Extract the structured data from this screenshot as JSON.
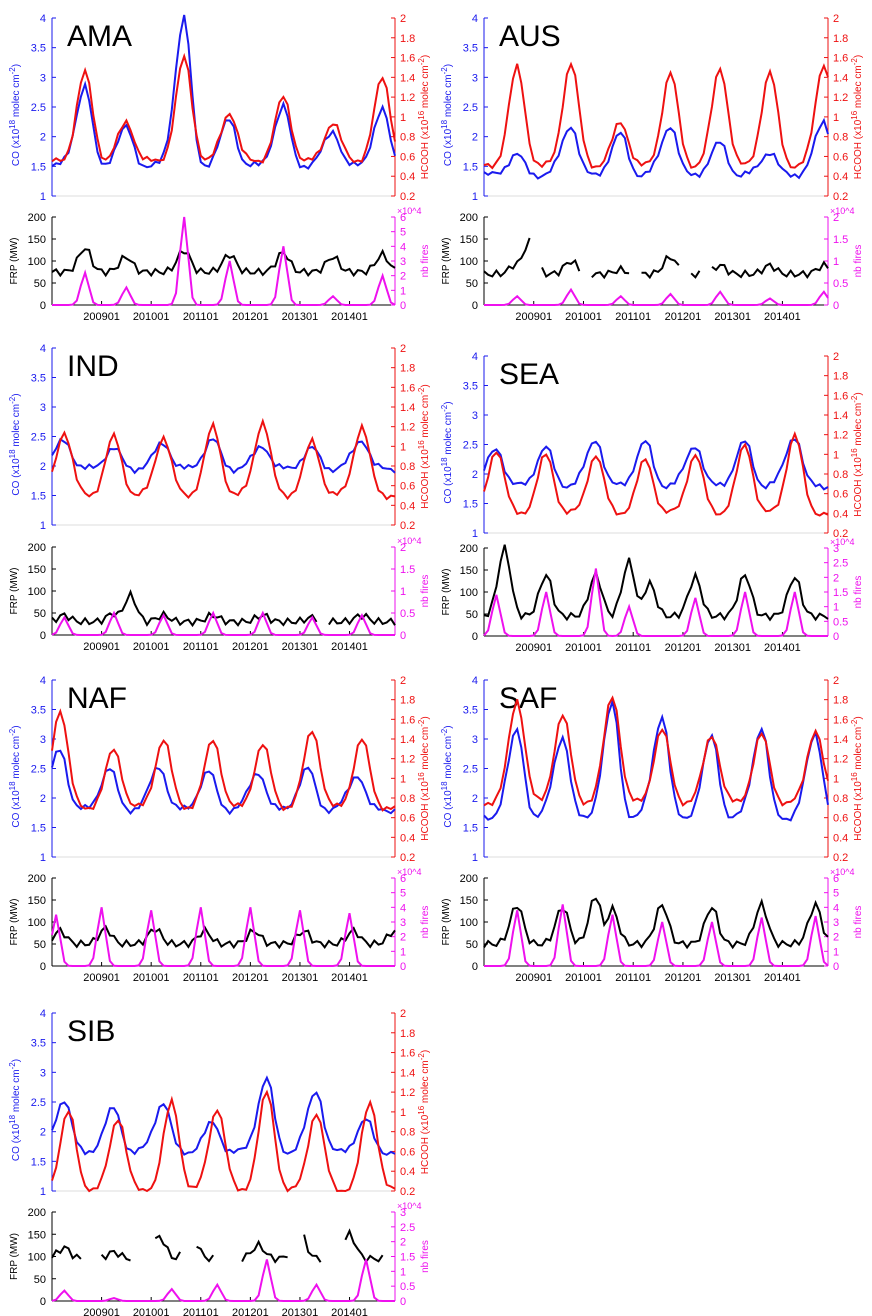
{
  "colors": {
    "co": "#1a1aee",
    "hcooh": "#ee1111",
    "frp": "#000000",
    "fires": "#ee11ee"
  },
  "labels": {
    "co_axis": "CO (x10^18 molec cm^-2)",
    "hcooh_axis": "HCOOH (x10^16 molec cm^-2)",
    "frp_axis": "FRP (MW)",
    "fires_axis": "nb fires",
    "exponent": "×10^4"
  },
  "x_ticks": [
    "200901",
    "201001",
    "201101",
    "201201",
    "201301",
    "201401"
  ],
  "chart_data": [
    {
      "region": "AMA",
      "type": "line",
      "x_range": [
        "2008-01",
        "2014-12"
      ],
      "co_ylim": [
        1,
        4
      ],
      "co_ticks": [
        "1",
        "1.5",
        "2",
        "2.5",
        "3",
        "3.5",
        "4"
      ],
      "hcooh_ylim": [
        0.2,
        2
      ],
      "hcooh_ticks": [
        "0.2",
        "0.4",
        "0.6",
        "0.8",
        "1",
        "1.2",
        "1.4",
        "1.6",
        "1.8",
        "2"
      ],
      "frp_ylim": [
        0,
        200
      ],
      "frp_ticks": [
        "0",
        "50",
        "100",
        "150",
        "200"
      ],
      "fires_ylim": [
        0,
        6
      ],
      "fires_ticks": [
        "0",
        "1",
        "2",
        "3",
        "4",
        "5",
        "6"
      ],
      "co_peaks": [
        [
          8,
          2.85
        ],
        [
          18,
          2.15
        ],
        [
          32,
          4.0
        ],
        [
          43,
          2.3
        ],
        [
          56,
          2.5
        ],
        [
          68,
          2.1
        ],
        [
          80,
          2.45
        ]
      ],
      "co_base": 1.5,
      "hcooh_peaks": [
        [
          8,
          1.45
        ],
        [
          18,
          0.95
        ],
        [
          32,
          1.6
        ],
        [
          43,
          1.05
        ],
        [
          56,
          1.2
        ],
        [
          68,
          0.95
        ],
        [
          80,
          1.4
        ]
      ],
      "hcooh_base": 0.55,
      "frp_base": 75,
      "frp_peaks": [
        [
          8,
          130
        ],
        [
          18,
          110
        ],
        [
          32,
          125
        ],
        [
          43,
          115
        ],
        [
          56,
          120
        ],
        [
          68,
          110
        ],
        [
          80,
          115
        ]
      ],
      "fires_peaks": [
        [
          8,
          2.2
        ],
        [
          18,
          1.2
        ],
        [
          32,
          6.0
        ],
        [
          43,
          3.0
        ],
        [
          56,
          4.0
        ],
        [
          68,
          0.6
        ],
        [
          80,
          2.0
        ]
      ],
      "frp_gaps": []
    },
    {
      "region": "AUS",
      "type": "line",
      "x_range": [
        "2008-01",
        "2014-12"
      ],
      "co_ylim": [
        1,
        4
      ],
      "co_ticks": [
        "1",
        "1.5",
        "2",
        "2.5",
        "3",
        "3.5",
        "4"
      ],
      "hcooh_ylim": [
        0.2,
        2
      ],
      "hcooh_ticks": [
        "0.2",
        "0.4",
        "0.6",
        "0.8",
        "1",
        "1.2",
        "1.4",
        "1.6",
        "1.8",
        "2"
      ],
      "frp_ylim": [
        0,
        200
      ],
      "frp_ticks": [
        "0",
        "50",
        "100",
        "150",
        "200"
      ],
      "fires_ylim": [
        0,
        2
      ],
      "fires_ticks": [
        "0",
        "0.5",
        "1",
        "1.5",
        "2"
      ],
      "co_peaks": [
        [
          8,
          1.7
        ],
        [
          21,
          2.2
        ],
        [
          33,
          2.05
        ],
        [
          45,
          2.2
        ],
        [
          57,
          1.9
        ],
        [
          69,
          1.75
        ],
        [
          82,
          2.25
        ]
      ],
      "co_base": 1.35,
      "hcooh_peaks": [
        [
          8,
          1.5
        ],
        [
          21,
          1.55
        ],
        [
          33,
          0.95
        ],
        [
          45,
          1.45
        ],
        [
          57,
          1.5
        ],
        [
          69,
          1.45
        ],
        [
          82,
          1.55
        ]
      ],
      "hcooh_base": 0.5,
      "frp_base": 70,
      "frp_peaks": [
        [
          8,
          95
        ],
        [
          11,
          145
        ],
        [
          21,
          100
        ],
        [
          33,
          80
        ],
        [
          45,
          110
        ],
        [
          57,
          90
        ],
        [
          69,
          90
        ],
        [
          82,
          90
        ]
      ],
      "fires_peaks": [
        [
          8,
          0.2
        ],
        [
          21,
          0.35
        ],
        [
          33,
          0.2
        ],
        [
          45,
          0.25
        ],
        [
          57,
          0.3
        ],
        [
          69,
          0.15
        ],
        [
          82,
          0.3
        ]
      ],
      "frp_gaps": [
        [
          12,
          13
        ],
        [
          24,
          25
        ],
        [
          36,
          37
        ],
        [
          48,
          49
        ],
        [
          53,
          54
        ]
      ]
    },
    {
      "region": "IND",
      "type": "line",
      "x_range": [
        "2008-01",
        "2014-12"
      ],
      "co_ylim": [
        1,
        4
      ],
      "co_ticks": [
        "1",
        "1.5",
        "2",
        "2.5",
        "3",
        "3.5",
        "4"
      ],
      "hcooh_ylim": [
        0.2,
        2
      ],
      "hcooh_ticks": [
        "0.2",
        "0.4",
        "0.6",
        "0.8",
        "1",
        "1.2",
        "1.4",
        "1.6",
        "1.8",
        "2"
      ],
      "frp_ylim": [
        0,
        200
      ],
      "frp_ticks": [
        "0",
        "50",
        "100",
        "150",
        "200"
      ],
      "fires_ylim": [
        0,
        2
      ],
      "fires_ticks": [
        "0",
        "0.5",
        "1",
        "1.5",
        "2"
      ],
      "co_peaks": [
        [
          3,
          2.45
        ],
        [
          15,
          2.3
        ],
        [
          27,
          2.4
        ],
        [
          39,
          2.45
        ],
        [
          51,
          2.35
        ],
        [
          63,
          2.3
        ],
        [
          75,
          2.45
        ]
      ],
      "co_base": 1.95,
      "hcooh_peaks": [
        [
          3,
          1.15
        ],
        [
          15,
          1.1
        ],
        [
          27,
          1.1
        ],
        [
          39,
          1.2
        ],
        [
          51,
          1.25
        ],
        [
          63,
          1.05
        ],
        [
          75,
          1.2
        ]
      ],
      "hcooh_base": 0.5,
      "frp_base": 30,
      "frp_peaks": [
        [
          3,
          45
        ],
        [
          15,
          50
        ],
        [
          19,
          90
        ],
        [
          27,
          45
        ],
        [
          39,
          45
        ],
        [
          51,
          45
        ],
        [
          63,
          40
        ],
        [
          75,
          45
        ]
      ],
      "fires_peaks": [
        [
          3,
          0.4
        ],
        [
          15,
          0.5
        ],
        [
          27,
          0.45
        ],
        [
          39,
          0.5
        ],
        [
          51,
          0.5
        ],
        [
          63,
          0.4
        ],
        [
          75,
          0.45
        ]
      ],
      "frp_gaps": [
        [
          65,
          66
        ]
      ]
    },
    {
      "region": "SEA",
      "type": "line",
      "x_range": [
        "2008-01",
        "2014-12"
      ],
      "co_ylim": [
        1,
        4
      ],
      "co_ticks": [
        "1",
        "1.5",
        "2",
        "2.5",
        "3",
        "3.5",
        "4"
      ],
      "hcooh_ylim": [
        0.2,
        2
      ],
      "hcooh_ticks": [
        "0.2",
        "0.4",
        "0.6",
        "0.8",
        "1",
        "1.2",
        "1.4",
        "1.6",
        "1.8",
        "2"
      ],
      "frp_ylim": [
        0,
        200
      ],
      "frp_ticks": [
        "0",
        "50",
        "100",
        "150",
        "200"
      ],
      "fires_ylim": [
        0,
        3
      ],
      "fires_ticks": [
        "0",
        "0.5",
        "1",
        "1.5",
        "2",
        "2.5",
        "3"
      ],
      "co_peaks": [
        [
          3,
          2.45
        ],
        [
          15,
          2.45
        ],
        [
          27,
          2.6
        ],
        [
          39,
          2.55
        ],
        [
          51,
          2.5
        ],
        [
          63,
          2.55
        ],
        [
          75,
          2.65
        ]
      ],
      "co_base": 1.8,
      "hcooh_peaks": [
        [
          3,
          1.05
        ],
        [
          15,
          1.0
        ],
        [
          27,
          1.0
        ],
        [
          39,
          0.95
        ],
        [
          51,
          1.0
        ],
        [
          63,
          1.1
        ],
        [
          75,
          1.2
        ]
      ],
      "hcooh_base": 0.4,
      "frp_base": 45,
      "frp_peaks": [
        [
          5,
          200
        ],
        [
          15,
          140
        ],
        [
          27,
          140
        ],
        [
          35,
          170
        ],
        [
          40,
          120
        ],
        [
          51,
          135
        ],
        [
          63,
          140
        ],
        [
          75,
          135
        ]
      ],
      "fires_peaks": [
        [
          3,
          1.4
        ],
        [
          15,
          1.5
        ],
        [
          27,
          2.3
        ],
        [
          35,
          1.0
        ],
        [
          51,
          1.3
        ],
        [
          63,
          1.5
        ],
        [
          75,
          1.5
        ]
      ],
      "frp_gaps": []
    },
    {
      "region": "NAF",
      "type": "line",
      "x_range": [
        "2008-01",
        "2014-12"
      ],
      "co_ylim": [
        1,
        4
      ],
      "co_ticks": [
        "1",
        "1.5",
        "2",
        "2.5",
        "3",
        "3.5",
        "4"
      ],
      "hcooh_ylim": [
        0.2,
        2
      ],
      "hcooh_ticks": [
        "0.2",
        "0.4",
        "0.6",
        "0.8",
        "1",
        "1.2",
        "1.4",
        "1.6",
        "1.8",
        "2"
      ],
      "frp_ylim": [
        0,
        200
      ],
      "frp_ticks": [
        "0",
        "50",
        "100",
        "150",
        "200"
      ],
      "fires_ylim": [
        0,
        6
      ],
      "fires_ticks": [
        "0",
        "1",
        "2",
        "3",
        "4",
        "5",
        "6"
      ],
      "co_peaks": [
        [
          2,
          2.85
        ],
        [
          14,
          2.5
        ],
        [
          26,
          2.55
        ],
        [
          38,
          2.45
        ],
        [
          50,
          2.45
        ],
        [
          62,
          2.5
        ],
        [
          74,
          2.4
        ]
      ],
      "co_base": 1.8,
      "hcooh_peaks": [
        [
          2,
          1.7
        ],
        [
          15,
          1.3
        ],
        [
          27,
          1.4
        ],
        [
          39,
          1.4
        ],
        [
          51,
          1.35
        ],
        [
          63,
          1.5
        ],
        [
          75,
          1.4
        ]
      ],
      "hcooh_base": 0.7,
      "frp_base": 50,
      "frp_peaks": [
        [
          2,
          80
        ],
        [
          13,
          85
        ],
        [
          25,
          85
        ],
        [
          37,
          80
        ],
        [
          49,
          80
        ],
        [
          61,
          80
        ],
        [
          73,
          80
        ],
        [
          83,
          80
        ]
      ],
      "fires_peaks": [
        [
          1,
          3.5
        ],
        [
          12,
          4.0
        ],
        [
          24,
          3.8
        ],
        [
          36,
          4.0
        ],
        [
          48,
          4.0
        ],
        [
          60,
          3.8
        ],
        [
          72,
          3.6
        ]
      ],
      "frp_gaps": []
    },
    {
      "region": "SAF",
      "type": "line",
      "x_range": [
        "2008-01",
        "2014-12"
      ],
      "co_ylim": [
        1,
        4
      ],
      "co_ticks": [
        "1",
        "1.5",
        "2",
        "2.5",
        "3",
        "3.5",
        "4"
      ],
      "hcooh_ylim": [
        0.2,
        2
      ],
      "hcooh_ticks": [
        "0.2",
        "0.4",
        "0.6",
        "0.8",
        "1",
        "1.2",
        "1.4",
        "1.6",
        "1.8",
        "2"
      ],
      "frp_ylim": [
        0,
        200
      ],
      "frp_ticks": [
        "0",
        "50",
        "100",
        "150",
        "200"
      ],
      "fires_ylim": [
        0,
        6
      ],
      "fires_ticks": [
        "0",
        "1",
        "2",
        "3",
        "4",
        "5",
        "6"
      ],
      "co_peaks": [
        [
          8,
          3.15
        ],
        [
          19,
          3.05
        ],
        [
          31,
          3.6
        ],
        [
          43,
          3.4
        ],
        [
          55,
          3.05
        ],
        [
          67,
          3.2
        ],
        [
          80,
          3.1
        ]
      ],
      "co_base": 1.65,
      "hcooh_peaks": [
        [
          8,
          1.8
        ],
        [
          19,
          1.65
        ],
        [
          31,
          1.85
        ],
        [
          43,
          1.5
        ],
        [
          55,
          1.45
        ],
        [
          67,
          1.45
        ],
        [
          80,
          1.5
        ]
      ],
      "hcooh_base": 0.75,
      "frp_base": 50,
      "frp_peaks": [
        [
          8,
          140
        ],
        [
          19,
          135
        ],
        [
          27,
          160
        ],
        [
          31,
          130
        ],
        [
          43,
          140
        ],
        [
          55,
          135
        ],
        [
          67,
          140
        ],
        [
          80,
          140
        ]
      ],
      "fires_peaks": [
        [
          8,
          3.8
        ],
        [
          19,
          4.2
        ],
        [
          31,
          3.5
        ],
        [
          43,
          3.0
        ],
        [
          55,
          3.0
        ],
        [
          67,
          3.3
        ],
        [
          80,
          3.4
        ]
      ],
      "frp_gaps": []
    },
    {
      "region": "SIB",
      "type": "line",
      "x_range": [
        "2008-01",
        "2014-12"
      ],
      "co_ylim": [
        1,
        4
      ],
      "co_ticks": [
        "1",
        "1.5",
        "2",
        "2.5",
        "3",
        "3.5",
        "4"
      ],
      "hcooh_ylim": [
        0.2,
        2
      ],
      "hcooh_ticks": [
        "0.2",
        "0.4",
        "0.6",
        "0.8",
        "1",
        "1.2",
        "1.4",
        "1.6",
        "1.8",
        "2"
      ],
      "frp_ylim": [
        0,
        200
      ],
      "frp_ticks": [
        "0",
        "50",
        "100",
        "150",
        "200"
      ],
      "fires_ylim": [
        0,
        3
      ],
      "fires_ticks": [
        "0",
        "0.5",
        "1",
        "1.5",
        "2",
        "2.5",
        "3"
      ],
      "co_peaks": [
        [
          3,
          2.55
        ],
        [
          15,
          2.4
        ],
        [
          27,
          2.5
        ],
        [
          39,
          2.15
        ],
        [
          52,
          2.9
        ],
        [
          64,
          2.7
        ],
        [
          76,
          2.2
        ]
      ],
      "co_base": 1.65,
      "hcooh_peaks": [
        [
          4,
          1.0
        ],
        [
          16,
          0.95
        ],
        [
          29,
          1.1
        ],
        [
          40,
          1.05
        ],
        [
          52,
          1.2
        ],
        [
          64,
          1.0
        ],
        [
          77,
          1.1
        ]
      ],
      "hcooh_base": 0.2,
      "frp_base": 95,
      "frp_peaks": [
        [
          3,
          120
        ],
        [
          15,
          110
        ],
        [
          26,
          145
        ],
        [
          34,
          140
        ],
        [
          50,
          125
        ],
        [
          60,
          155
        ],
        [
          72,
          150
        ]
      ],
      "fires_peaks": [
        [
          3,
          0.35
        ],
        [
          15,
          0.1
        ],
        [
          29,
          0.4
        ],
        [
          40,
          0.55
        ],
        [
          52,
          1.4
        ],
        [
          64,
          0.55
        ],
        [
          76,
          1.4
        ]
      ],
      "frp_gaps": [
        [
          8,
          11
        ],
        [
          20,
          24
        ],
        [
          32,
          34
        ],
        [
          40,
          45
        ],
        [
          58,
          60
        ],
        [
          66,
          70
        ],
        [
          81,
          83
        ]
      ]
    }
  ]
}
